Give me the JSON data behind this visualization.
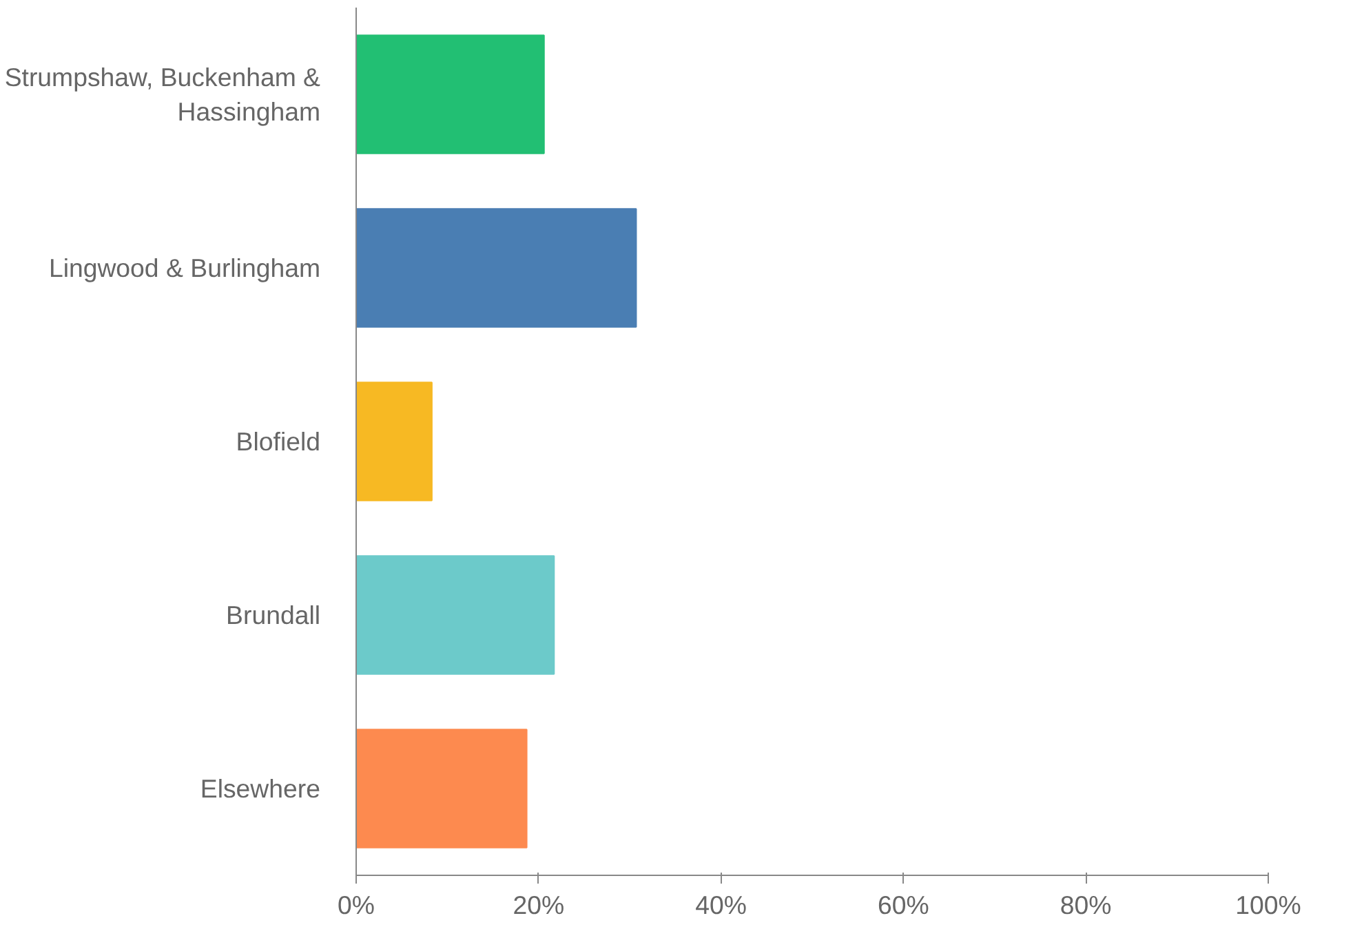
{
  "chart_data": {
    "type": "bar",
    "orientation": "horizontal",
    "categories": [
      "Strumpshaw, Buckenham & Hassingham",
      "Lingwood & Burlingham",
      "Blofield",
      "Brundall",
      "Elsewhere"
    ],
    "values": [
      20.6,
      30.7,
      8.3,
      21.7,
      18.7
    ],
    "colors": [
      "#22bf73",
      "#4a7eb3",
      "#f7b923",
      "#6ccaca",
      "#fd8a4f"
    ],
    "xlim": [
      0,
      100
    ],
    "xticks": [
      {
        "value": 0,
        "label": "0%"
      },
      {
        "value": 20,
        "label": "20%"
      },
      {
        "value": 40,
        "label": "40%"
      },
      {
        "value": 60,
        "label": "60%"
      },
      {
        "value": 80,
        "label": "80%"
      },
      {
        "value": 100,
        "label": "100%"
      }
    ],
    "grid": false
  }
}
